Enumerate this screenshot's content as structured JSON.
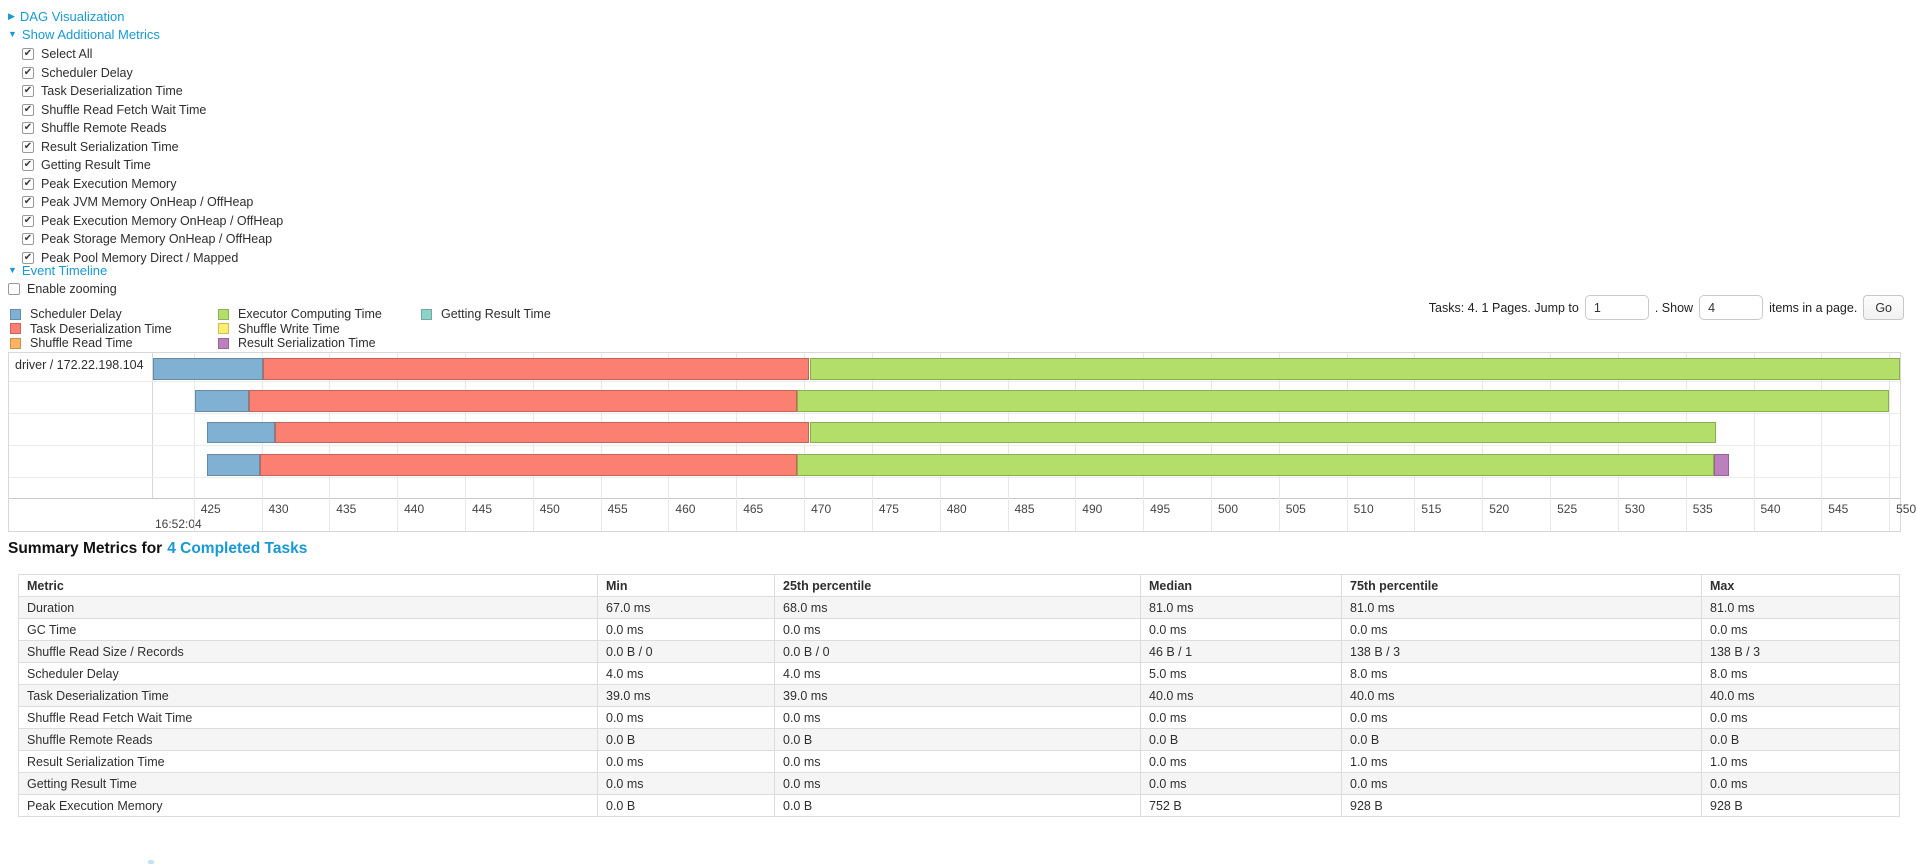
{
  "accent": {
    "link_blue": "#1799d4"
  },
  "icons": {
    "caret_right": "▶",
    "caret_down": "▼"
  },
  "panels": {
    "dag": {
      "label": "DAG Visualization"
    },
    "metrics": {
      "label": "Show Additional Metrics"
    },
    "timeline": {
      "label": "Event Timeline"
    },
    "enable_zooming": {
      "label": "Enable zooming",
      "checked": false
    }
  },
  "metrics_checkboxes": [
    {
      "label": "Select All",
      "checked": true
    },
    {
      "label": "Scheduler Delay",
      "checked": true
    },
    {
      "label": "Task Deserialization Time",
      "checked": true
    },
    {
      "label": "Shuffle Read Fetch Wait Time",
      "checked": true
    },
    {
      "label": "Shuffle Remote Reads",
      "checked": true
    },
    {
      "label": "Result Serialization Time",
      "checked": true
    },
    {
      "label": "Getting Result Time",
      "checked": true
    },
    {
      "label": "Peak Execution Memory",
      "checked": true
    },
    {
      "label": "Peak JVM Memory OnHeap / OffHeap",
      "checked": true
    },
    {
      "label": "Peak Execution Memory OnHeap / OffHeap",
      "checked": true
    },
    {
      "label": "Peak Storage Memory OnHeap / OffHeap",
      "checked": true
    },
    {
      "label": "Peak Pool Memory Direct / Mapped",
      "checked": true
    }
  ],
  "legend": {
    "columns": [
      [
        {
          "label": "Scheduler Delay",
          "color": "#80B1D3"
        },
        {
          "label": "Task Deserialization Time",
          "color": "#FB8072"
        },
        {
          "label": "Shuffle Read Time",
          "color": "#FDB462"
        }
      ],
      [
        {
          "label": "Executor Computing Time",
          "color": "#B3DE69"
        },
        {
          "label": "Shuffle Write Time",
          "color": "#FFED6F"
        },
        {
          "label": "Result Serialization Time",
          "color": "#BC80BD"
        }
      ],
      [
        {
          "label": "Getting Result Time",
          "color": "#8DD3C7"
        }
      ]
    ]
  },
  "pagination": {
    "tasks_text": "Tasks: 4. 1 Pages. Jump to",
    "jump_value": "1",
    "show_text": ". Show",
    "show_value": "4",
    "items_text": "items in a page.",
    "go_label": "Go"
  },
  "chart_data": {
    "type": "timeline",
    "title": "Event Timeline",
    "row_label": "driver / 172.22.198.104",
    "axis": {
      "unit": "ms within second",
      "base_time_label": "16:52:04",
      "window_start": 422.0,
      "window_end": 550.8,
      "tick_start": 425,
      "tick_end": 550,
      "tick_step": 5
    },
    "series_colors": {
      "scheduler_delay": "#80B1D3",
      "task_deserialization": "#FB8072",
      "shuffle_read": "#FDB462",
      "executor_computing": "#B3DE69",
      "shuffle_write": "#FFED6F",
      "result_serialization": "#BC80BD",
      "getting_result": "#8DD3C7"
    },
    "tasks": [
      {
        "start": 422.0,
        "segments": [
          {
            "name": "scheduler_delay",
            "end": 430.1
          },
          {
            "name": "task_deserialization",
            "end": 470.4
          },
          {
            "name": "executor_computing",
            "end": 550.8
          }
        ]
      },
      {
        "start": 425.1,
        "segments": [
          {
            "name": "scheduler_delay",
            "end": 429.1
          },
          {
            "name": "task_deserialization",
            "end": 469.5
          },
          {
            "name": "executor_computing",
            "end": 550.0
          }
        ]
      },
      {
        "start": 426.0,
        "segments": [
          {
            "name": "scheduler_delay",
            "end": 431.0
          },
          {
            "name": "task_deserialization",
            "end": 470.4
          },
          {
            "name": "executor_computing",
            "end": 537.2
          }
        ]
      },
      {
        "start": 426.0,
        "segments": [
          {
            "name": "scheduler_delay",
            "end": 429.9
          },
          {
            "name": "task_deserialization",
            "end": 469.5
          },
          {
            "name": "executor_computing",
            "end": 537.1
          },
          {
            "name": "result_serialization",
            "end": 538.2
          }
        ]
      }
    ]
  },
  "summary": {
    "title_prefix": "Summary Metrics for",
    "title_link": "4 Completed Tasks",
    "table": {
      "headers": [
        "Metric",
        "Min",
        "25th percentile",
        "Median",
        "75th percentile",
        "Max"
      ],
      "rows": [
        {
          "metric": "Duration",
          "values": [
            "67.0 ms",
            "68.0 ms",
            "81.0 ms",
            "81.0 ms",
            "81.0 ms"
          ]
        },
        {
          "metric": "GC Time",
          "values": [
            "0.0 ms",
            "0.0 ms",
            "0.0 ms",
            "0.0 ms",
            "0.0 ms"
          ]
        },
        {
          "metric": "Shuffle Read Size / Records",
          "values": [
            "0.0 B / 0",
            "0.0 B / 0",
            "46 B / 1",
            "138 B / 3",
            "138 B / 3"
          ]
        },
        {
          "metric": "Scheduler Delay",
          "values": [
            "4.0 ms",
            "4.0 ms",
            "5.0 ms",
            "8.0 ms",
            "8.0 ms"
          ]
        },
        {
          "metric": "Task Deserialization Time",
          "values": [
            "39.0 ms",
            "39.0 ms",
            "40.0 ms",
            "40.0 ms",
            "40.0 ms"
          ]
        },
        {
          "metric": "Shuffle Read Fetch Wait Time",
          "values": [
            "0.0 ms",
            "0.0 ms",
            "0.0 ms",
            "0.0 ms",
            "0.0 ms"
          ]
        },
        {
          "metric": "Shuffle Remote Reads",
          "values": [
            "0.0 B",
            "0.0 B",
            "0.0 B",
            "0.0 B",
            "0.0 B"
          ]
        },
        {
          "metric": "Result Serialization Time",
          "values": [
            "0.0 ms",
            "0.0 ms",
            "0.0 ms",
            "1.0 ms",
            "1.0 ms"
          ]
        },
        {
          "metric": "Getting Result Time",
          "values": [
            "0.0 ms",
            "0.0 ms",
            "0.0 ms",
            "0.0 ms",
            "0.0 ms"
          ]
        },
        {
          "metric": "Peak Execution Memory",
          "values": [
            "0.0 B",
            "0.0 B",
            "752 B",
            "928 B",
            "928 B"
          ]
        }
      ]
    }
  }
}
